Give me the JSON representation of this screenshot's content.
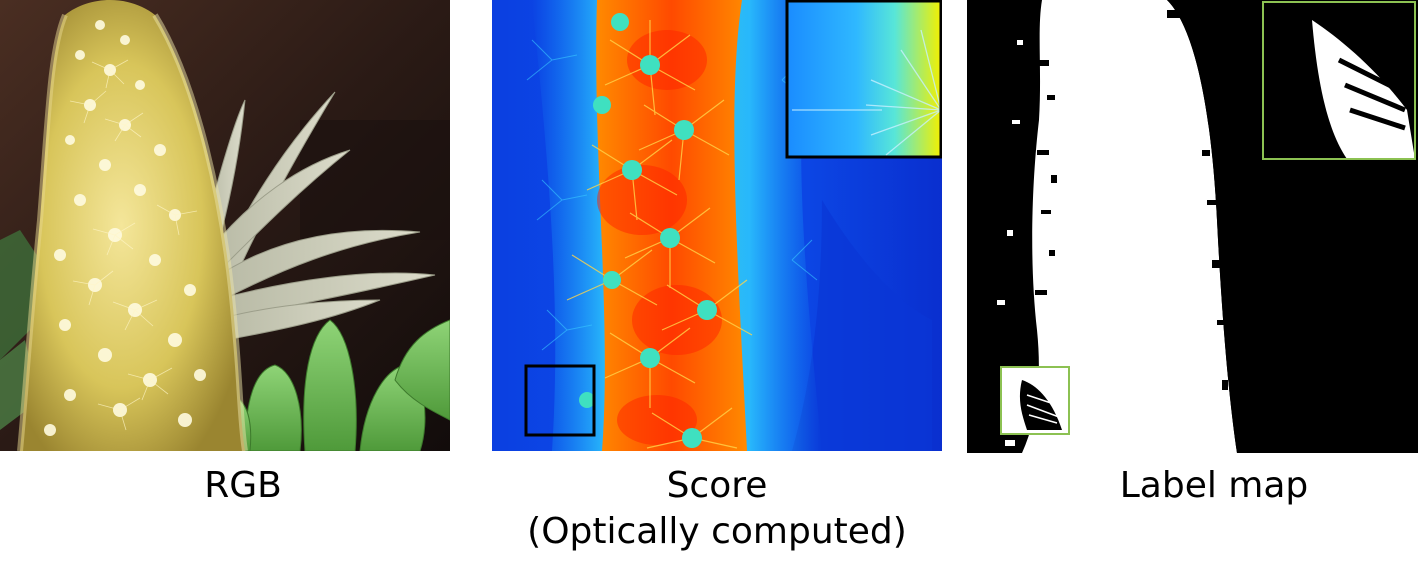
{
  "panels": {
    "rgb": {
      "caption": "RGB"
    },
    "score": {
      "caption_line1": "Score",
      "caption_line2": "(Optically computed)"
    },
    "label": {
      "caption": "Label map"
    }
  },
  "colors": {
    "score_zoom_frame": "#000000",
    "label_zoom_frame": "#8cc152"
  }
}
